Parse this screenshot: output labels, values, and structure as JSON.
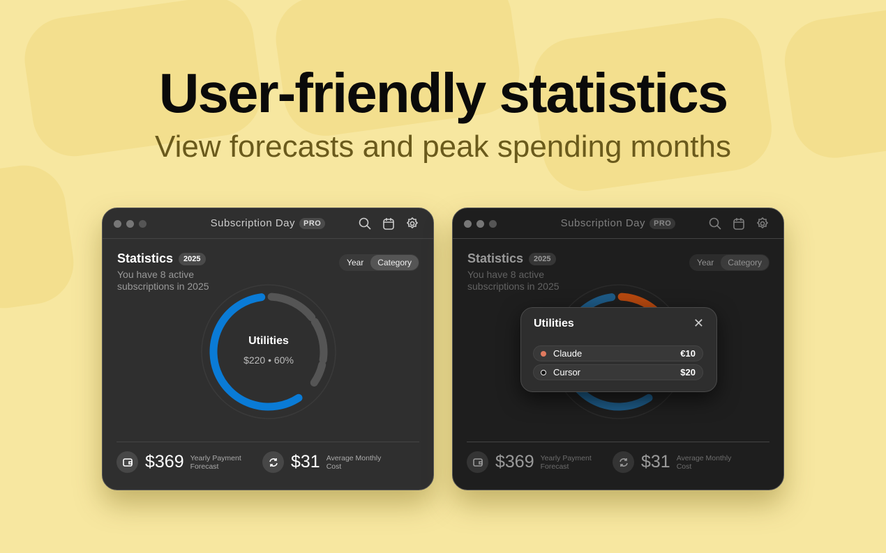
{
  "hero": {
    "title": "User-friendly statistics",
    "subtitle": "View forecasts and peak spending months"
  },
  "window": {
    "app_title": "Subscription Day",
    "pro_badge": "PRO",
    "icons": [
      "search-icon",
      "calendar-icon",
      "gear-icon"
    ]
  },
  "stats": {
    "title": "Statistics",
    "year_badge": "2025",
    "description": "You have 8 active subscriptions in 2025",
    "toggle": [
      "Year",
      "Category"
    ],
    "selected_toggle": "Category"
  },
  "donut": {
    "selected": "Utilities",
    "amount": "$220",
    "percent": "60%",
    "separator": "•",
    "segments_left": [
      {
        "share": 60,
        "color": "#0a7bd6"
      },
      {
        "share": 15,
        "color": "#555555"
      },
      {
        "share": 13,
        "color": "#555555"
      },
      {
        "share": 7,
        "color": "#555555"
      }
    ],
    "segments_right": [
      {
        "share": 60,
        "color": "#1d5a86"
      },
      {
        "share": 15,
        "color": "#b5480f"
      },
      {
        "share": 13,
        "color": "#333333"
      },
      {
        "share": 7,
        "color": "#1e8a3e"
      }
    ]
  },
  "metrics": [
    {
      "value": "$369",
      "label": "Yearly Payment Forecast",
      "icon": "wallet-icon"
    },
    {
      "value": "$31",
      "label": "Average Monthly Cost",
      "icon": "refresh-icon"
    }
  ],
  "popup": {
    "title": "Utilities",
    "items": [
      {
        "name": "Claude",
        "price": "€10",
        "color": "#e07a5f"
      },
      {
        "name": "Cursor",
        "price": "$20",
        "color": "#111111"
      }
    ]
  }
}
